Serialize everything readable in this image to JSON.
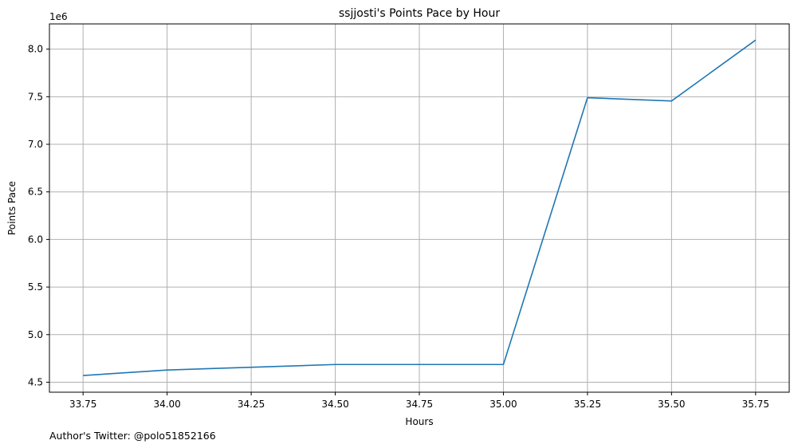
{
  "chart_data": {
    "type": "line",
    "title": "ssjjosti's Points Pace by Hour",
    "xlabel": "Hours",
    "ylabel": "Points Pace",
    "y_offset_label": "1e6",
    "x": [
      33.75,
      34.0,
      34.5,
      35.0,
      35.25,
      35.5,
      35.75
    ],
    "series": [
      {
        "values": [
          4570000,
          4628000,
          4686000,
          4686000,
          7490000,
          7455000,
          8095000
        ],
        "color": "#1f77b4"
      }
    ],
    "xlim": [
      33.65,
      35.85
    ],
    "ylim": [
      4.395,
      8.265
    ],
    "y_scale": 1000000,
    "xticks": [
      33.75,
      34.0,
      34.25,
      34.5,
      34.75,
      35.0,
      35.25,
      35.5,
      35.75
    ],
    "xtick_labels": [
      "33.75",
      "34.00",
      "34.25",
      "34.50",
      "34.75",
      "35.00",
      "35.25",
      "35.50",
      "35.75"
    ],
    "yticks": [
      4.5,
      5.0,
      5.5,
      6.0,
      6.5,
      7.0,
      7.5,
      8.0
    ],
    "ytick_labels": [
      "4.5",
      "5.0",
      "5.5",
      "6.0",
      "6.5",
      "7.0",
      "7.5",
      "8.0"
    ],
    "grid": true,
    "legend": "none"
  },
  "footer_text": "Author's Twitter: @polo51852166"
}
